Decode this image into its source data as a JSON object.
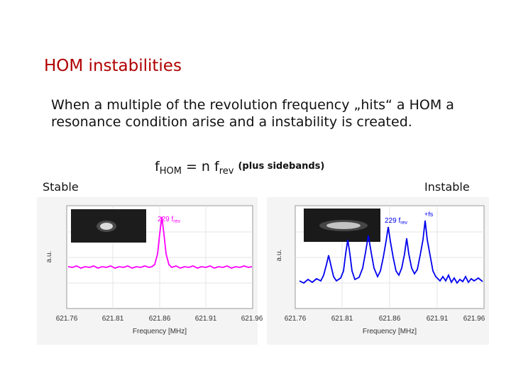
{
  "slide": {
    "title": "HOM instabilities",
    "body": "When a multiple of the revolution frequency „hits“ a HOM a resonance condition arise and a instability is created.",
    "formula": {
      "f": "f",
      "hom_sub": "HOM",
      "equals": " = n f",
      "rev_sub": "rev",
      "note": "(plus sidebands)"
    },
    "stable_label": "Stable",
    "instable_label": "Instable"
  },
  "plots": {
    "left": {
      "ylabel": "a.u.",
      "xlabel": "Frequency [MHz]",
      "ticks": [
        "621.76",
        "621.81",
        "621.86",
        "621.91",
        "621.96"
      ],
      "peak_label_main": "229 f",
      "peak_label_sub": "rev",
      "color": "#ff00ff"
    },
    "right": {
      "ylabel": "a.u.",
      "xlabel": "Frequency [MHz]",
      "ticks": [
        "621.76",
        "621.81",
        "621.86",
        "621.91",
        "621.96"
      ],
      "peak_label_main": "229 f",
      "peak_label_sub": "rev",
      "sideband_label": "+fs",
      "color": "#0000ee"
    }
  }
}
